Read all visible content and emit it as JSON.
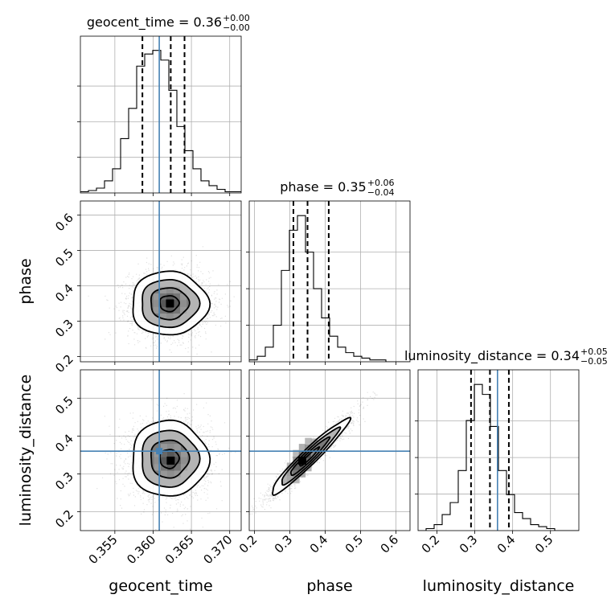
{
  "chart_data": {
    "type": "corner",
    "parameters": [
      {
        "name": "geocent_time",
        "axis_label": "geocent_time",
        "range": [
          0.3505,
          0.3715
        ],
        "ticks": [
          0.355,
          0.36,
          0.365,
          0.37
        ],
        "tick_labels": [
          "0.355",
          "0.360",
          "0.365",
          "0.370"
        ],
        "truth": 0.3608,
        "quantiles": [
          0.3586,
          0.3623,
          0.3641
        ],
        "title": {
          "text": "geocent_time = 0.36",
          "sup": "+0.00",
          "sub": "−0.00"
        },
        "hist_edges_start": 0.3505,
        "hist_bin_width": 0.00105,
        "hist_counts": [
          1,
          2,
          4,
          10,
          20,
          45,
          70,
          105,
          115,
          118,
          110,
          85,
          55,
          35,
          20,
          10,
          6,
          3,
          1,
          1
        ]
      },
      {
        "name": "phase",
        "axis_label": "phase",
        "range": [
          0.185,
          0.64
        ],
        "ticks": [
          0.2,
          0.3,
          0.4,
          0.5,
          0.6
        ],
        "tick_labels": [
          "0.2",
          "0.3",
          "0.4",
          "0.5",
          "0.6"
        ],
        "truth": null,
        "quantiles": [
          0.31,
          0.35,
          0.41
        ],
        "title": {
          "text": "phase = 0.35",
          "sup": "+0.06",
          "sub": "−0.04"
        },
        "hist_edges_start": 0.185,
        "hist_bin_width": 0.02275,
        "hist_counts": [
          1,
          3,
          8,
          20,
          50,
          72,
          80,
          60,
          40,
          24,
          14,
          8,
          5,
          3,
          2,
          1,
          1,
          0,
          0,
          0
        ]
      },
      {
        "name": "luminosity_distance",
        "axis_label": "luminosity_distance",
        "range": [
          0.15,
          0.575
        ],
        "ticks": [
          0.2,
          0.3,
          0.4,
          0.5
        ],
        "tick_labels": [
          "0.2",
          "0.3",
          "0.4",
          "0.5"
        ],
        "truth": 0.36,
        "quantiles": [
          0.29,
          0.34,
          0.39
        ],
        "title": {
          "text": "luminosity_distance = 0.34",
          "sup": "+0.05",
          "sub": "−0.05"
        },
        "hist_edges_start": 0.15,
        "hist_bin_width": 0.02125,
        "hist_counts": [
          0,
          1,
          3,
          8,
          14,
          30,
          55,
          73,
          68,
          52,
          30,
          18,
          9,
          6,
          3,
          2,
          1,
          0,
          0,
          0
        ]
      }
    ],
    "pair_panels": [
      {
        "x": "geocent_time",
        "y": "phase",
        "mean": [
          0.3621,
          0.35
        ],
        "sd": [
          0.0025,
          0.045
        ],
        "rho": 0.0,
        "density_peak": [
          0.3622,
          0.35
        ]
      },
      {
        "x": "geocent_time",
        "y": "luminosity_distance",
        "mean": [
          0.3621,
          0.34
        ],
        "sd": [
          0.0025,
          0.05
        ],
        "rho": 0.0,
        "density_peak": [
          0.3623,
          0.335
        ]
      },
      {
        "x": "phase",
        "y": "luminosity_distance",
        "mean": [
          0.355,
          0.345
        ],
        "sd": [
          0.055,
          0.05
        ],
        "rho": 0.96,
        "density_peak": [
          0.335,
          0.335
        ]
      }
    ],
    "contour_levels_sigma": [
      0.5,
      1.0,
      1.5,
      2.0
    ],
    "truth_color": "#4682b4",
    "grid": true
  }
}
